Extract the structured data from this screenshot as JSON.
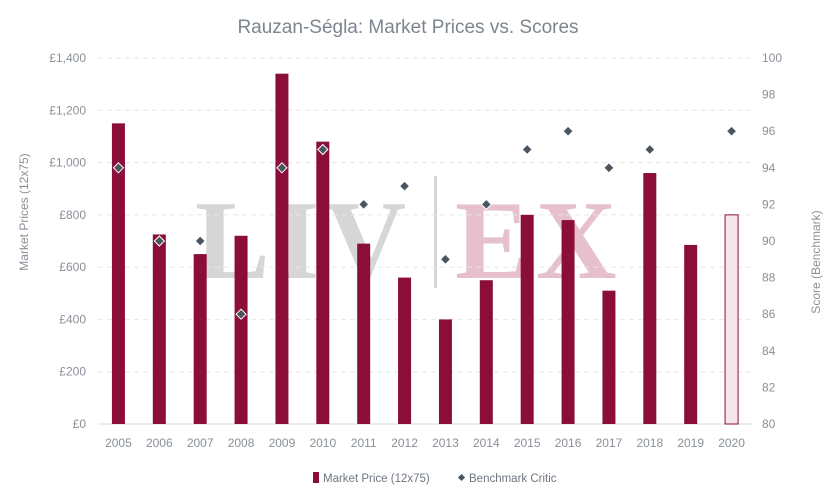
{
  "chart_data": {
    "type": "bar",
    "title": "Rauzan-Ségla: Market Prices vs. Scores",
    "xlabel": "",
    "ylabel": "Market Prices (12x75)",
    "y2label": "Score (Benchmark)",
    "categories": [
      "2005",
      "2006",
      "2007",
      "2008",
      "2009",
      "2010",
      "2011",
      "2012",
      "2013",
      "2014",
      "2015",
      "2016",
      "2017",
      "2018",
      "2019",
      "2020"
    ],
    "ylim": [
      0,
      1400
    ],
    "y2lim": [
      80,
      100
    ],
    "y_ticks": [
      "£0",
      "£200",
      "£400",
      "£600",
      "£800",
      "£1,000",
      "£1,200",
      "£1,400"
    ],
    "y2_ticks": [
      "80",
      "82",
      "84",
      "86",
      "88",
      "90",
      "92",
      "94",
      "96",
      "98",
      "100"
    ],
    "grid": true,
    "legend_position": "bottom",
    "series": [
      {
        "name": "Market Price (12x75)",
        "kind": "bar",
        "axis": "left",
        "color": "#8b0e3a",
        "values": [
          1150,
          725,
          650,
          720,
          1340,
          1080,
          690,
          560,
          400,
          550,
          800,
          780,
          510,
          960,
          685,
          800
        ],
        "highlight_last": true,
        "highlight_fill": "#f6e6eb"
      },
      {
        "name": "Benchmark Critic",
        "kind": "scatter",
        "axis": "right",
        "color": "#4a5560",
        "values": [
          94,
          90,
          90,
          86,
          94,
          95,
          92,
          93,
          89,
          92,
          95,
          96,
          94,
          95,
          null,
          96
        ]
      }
    ]
  },
  "watermark": {
    "left": "LIV",
    "right": "EX"
  }
}
